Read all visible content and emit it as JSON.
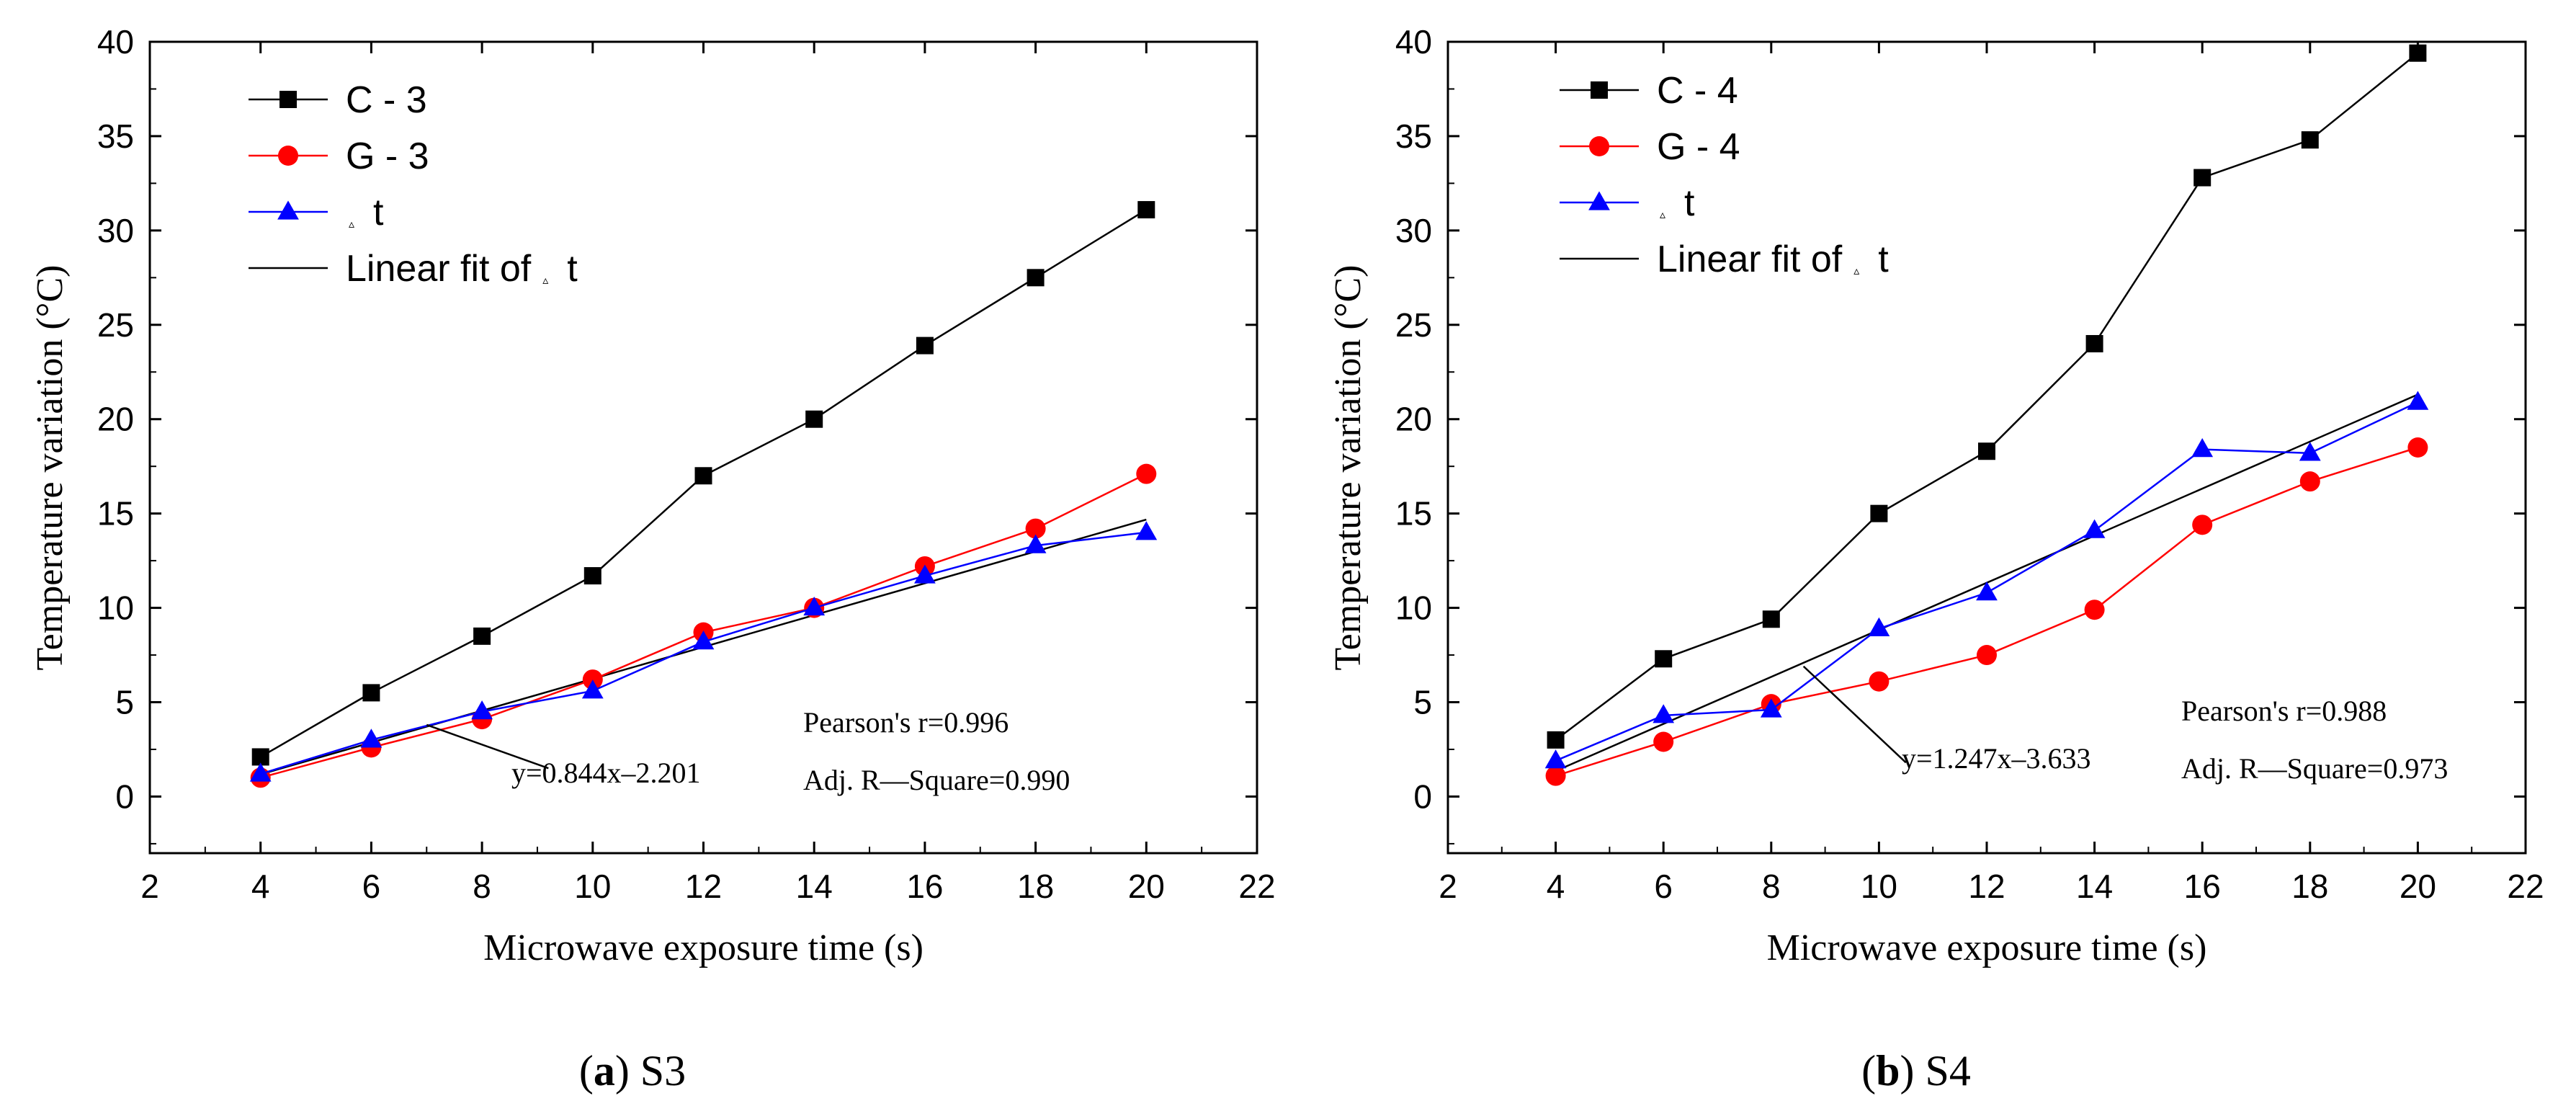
{
  "chart_data": [
    {
      "type": "line",
      "panel": "a",
      "caption_letter": "a",
      "caption_rest": "S3",
      "xlabel": "Microwave exposure time (s)",
      "ylabel": "Temperature variation (°C)",
      "xlim": [
        2,
        22
      ],
      "ylim": [
        -3,
        40
      ],
      "xticks": [
        2,
        4,
        6,
        8,
        10,
        12,
        14,
        16,
        18,
        20,
        22
      ],
      "yticks": [
        0,
        5,
        10,
        15,
        20,
        25,
        30,
        35,
        40
      ],
      "x": [
        4,
        6,
        8,
        10,
        12,
        14,
        16,
        18,
        20
      ],
      "series": [
        {
          "name": "C - 3",
          "marker": "square",
          "color": "#000000",
          "values": [
            2.1,
            5.5,
            8.5,
            11.7,
            17.0,
            20.0,
            23.9,
            27.5,
            31.1
          ]
        },
        {
          "name": "G - 3",
          "marker": "circle",
          "color": "#ff0000",
          "values": [
            1.0,
            2.6,
            4.1,
            6.2,
            8.7,
            10.0,
            12.2,
            14.2,
            17.1
          ]
        },
        {
          "name": "△t",
          "legend_prefix": "▵",
          "legend_text": "t",
          "marker": "triangle",
          "color": "#0000ff",
          "values": [
            1.2,
            3.0,
            4.5,
            5.6,
            8.2,
            10.0,
            11.7,
            13.3,
            14.0
          ]
        }
      ],
      "fit": {
        "name": "Linear fit of △t",
        "legend_text_a": "Linear fit of",
        "legend_prefix": "▵",
        "legend_text_b": "t",
        "slope": 0.844,
        "intercept": -2.201,
        "x_range": [
          4,
          20
        ],
        "color": "#000000"
      },
      "annotations": {
        "equation": "y=0.844x–2.201",
        "pearson": "Pearson's r=0.996",
        "adj_r2": "Adj. R—Square=0.990",
        "leader_from": [
          7,
          3.8
        ],
        "leader_to": [
          9.2,
          1.5
        ]
      }
    },
    {
      "type": "line",
      "panel": "b",
      "caption_letter": "b",
      "caption_rest": "S4",
      "xlabel": "Microwave exposure time (s)",
      "ylabel": "Temperature variation (°C)",
      "xlim": [
        2,
        22
      ],
      "ylim": [
        -3,
        40
      ],
      "xticks": [
        2,
        4,
        6,
        8,
        10,
        12,
        14,
        16,
        18,
        20,
        22
      ],
      "yticks": [
        0,
        5,
        10,
        15,
        20,
        25,
        30,
        35,
        40
      ],
      "x": [
        4,
        6,
        8,
        10,
        12,
        14,
        16,
        18,
        20
      ],
      "series": [
        {
          "name": "C - 4",
          "marker": "square",
          "color": "#000000",
          "values": [
            3.0,
            7.3,
            9.4,
            15.0,
            18.3,
            24.0,
            32.8,
            34.8,
            39.4
          ]
        },
        {
          "name": "G - 4",
          "marker": "circle",
          "color": "#ff0000",
          "values": [
            1.1,
            2.9,
            4.9,
            6.1,
            7.5,
            9.9,
            14.4,
            16.7,
            18.5
          ]
        },
        {
          "name": "△t",
          "legend_prefix": "▵",
          "legend_text": "t",
          "marker": "triangle",
          "color": "#0000ff",
          "values": [
            1.9,
            4.3,
            4.6,
            8.9,
            10.8,
            14.1,
            18.4,
            18.2,
            20.9
          ]
        }
      ],
      "fit": {
        "name": "Linear fit of △t",
        "legend_text_a": "Linear fit of",
        "legend_prefix": "▵",
        "legend_text_b": "t",
        "slope": 1.247,
        "intercept": -3.633,
        "x_range": [
          4,
          20
        ],
        "color": "#000000"
      },
      "annotations": {
        "equation": "y=1.247x–3.633",
        "pearson": "Pearson's r=0.988",
        "adj_r2": "Adj. R—Square=0.973",
        "leader_from": [
          8.6,
          6.9
        ],
        "leader_to": [
          10.5,
          1.8
        ]
      }
    }
  ]
}
